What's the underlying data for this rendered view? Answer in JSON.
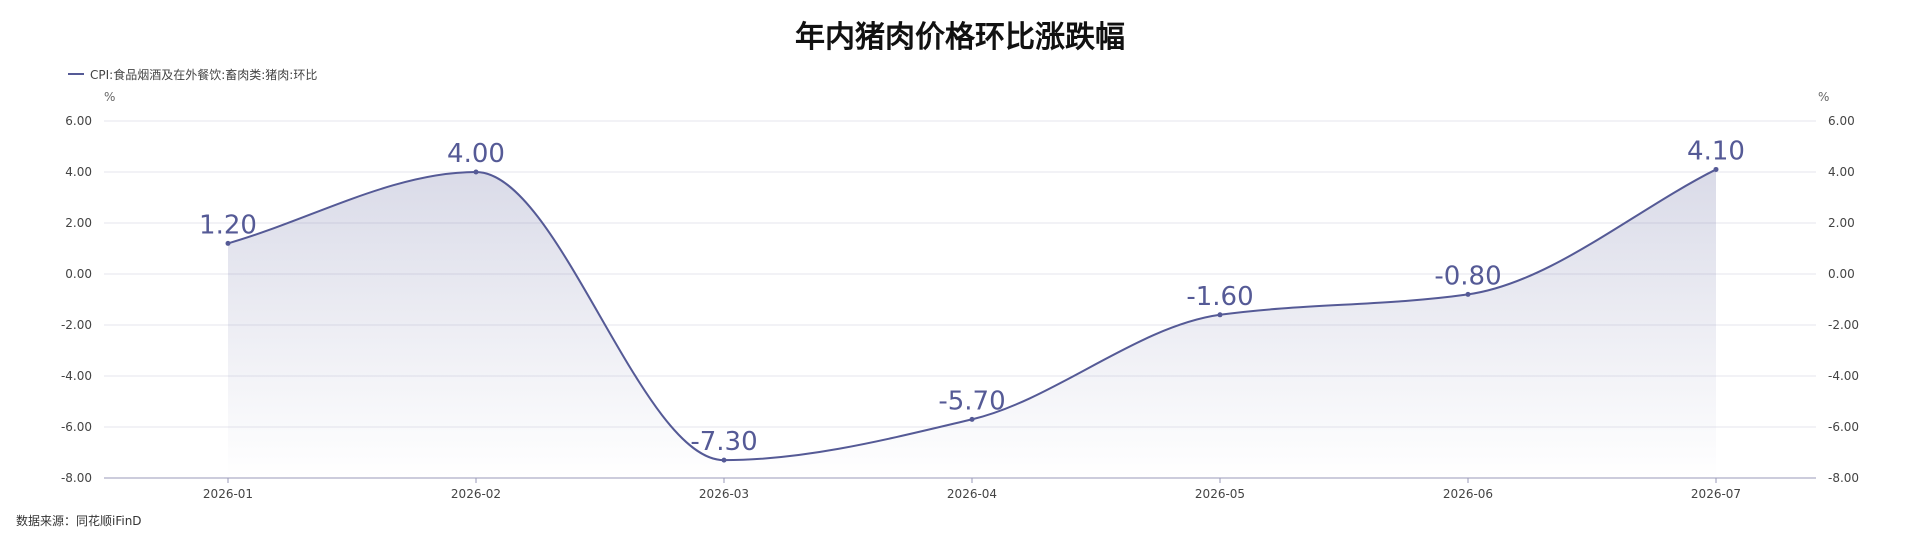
{
  "chart_data": {
    "type": "area",
    "title": "年内猪肉价格环比涨跌幅",
    "x": [
      "2026-01",
      "2026-02",
      "2026-03",
      "2026-04",
      "2026-05",
      "2026-06",
      "2026-07"
    ],
    "series": [
      {
        "name": "CPI:食品烟酒及在外餐饮:畜肉类:猪肉:环比",
        "values": [
          1.2,
          4.0,
          -7.3,
          -5.7,
          -1.6,
          -0.8,
          4.1
        ],
        "labels": [
          "1.20",
          "4.00",
          "-7.30",
          "-5.70",
          "-1.60",
          "-0.80",
          "4.10"
        ]
      }
    ],
    "ylim": [
      -8,
      6
    ],
    "y_ticks": [
      "6.00",
      "4.00",
      "2.00",
      "0.00",
      "-2.00",
      "-4.00",
      "-6.00",
      "-8.00"
    ],
    "y_unit_left": "%",
    "y_unit_right": "%",
    "grid": true,
    "legend_position": "top-left",
    "colors": {
      "line": "#555a96",
      "grid": "#e6e6ee",
      "axis": "#9a9ab8"
    }
  },
  "source": "数据来源：同花顺iFinD"
}
